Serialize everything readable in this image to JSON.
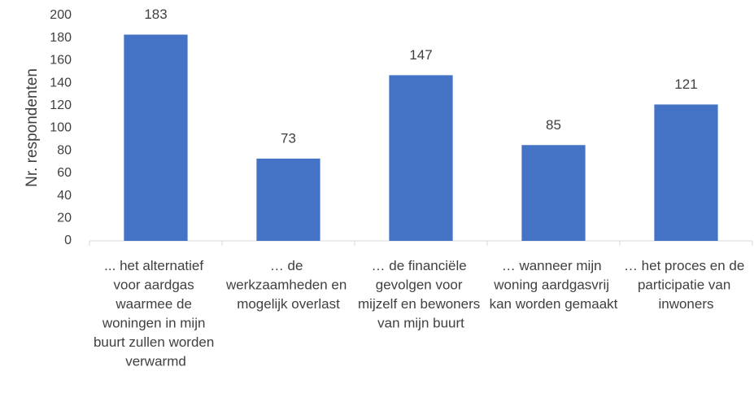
{
  "chart_data": {
    "type": "bar",
    "y_label": "Nr. respondenten",
    "categories": [
      "... het alternatief voor aardgas waarmee de woningen in mijn buurt zullen worden verwarmd",
      "… de werkzaamheden en mogelijk overlast",
      "… de financiële gevolgen voor mijzelf en bewoners van mijn buurt",
      "… wanneer mijn woning aardgasvrij kan worden gemaakt",
      "… het proces en de participatie van inwoners"
    ],
    "values": [
      183,
      73,
      147,
      85,
      121
    ],
    "color": "#4472c4",
    "ylim": [
      0,
      200
    ],
    "yticks": [
      0,
      20,
      40,
      60,
      80,
      100,
      120,
      140,
      160,
      180,
      200
    ],
    "grid": false
  }
}
